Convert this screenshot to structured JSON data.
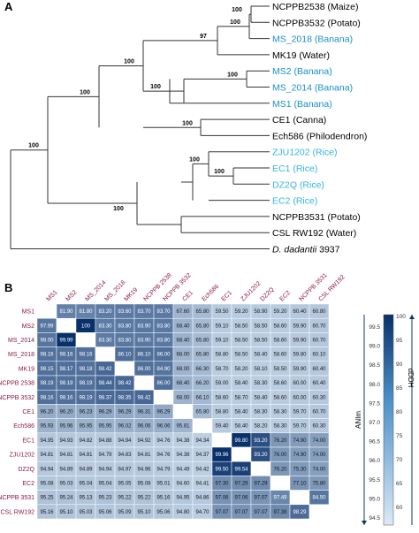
{
  "panel_a": {
    "label": "A",
    "leaves": [
      {
        "name": "NCPPB2538 (Maize)",
        "color": "#000000"
      },
      {
        "name": "NCPPB3532 (Potato)",
        "color": "#000000"
      },
      {
        "name": "MS_2018 (Banana)",
        "color": "#1a8fc9"
      },
      {
        "name": "MK19 (Water)",
        "color": "#000000"
      },
      {
        "name": "MS2  (Banana)",
        "color": "#1a8fc9"
      },
      {
        "name": "MS_2014 (Banana)",
        "color": "#1a8fc9"
      },
      {
        "name": "MS1 (Banana)",
        "color": "#1a8fc9"
      },
      {
        "name": "CE1 (Canna)",
        "color": "#000000"
      },
      {
        "name": "Ech586 (Philodendron)",
        "color": "#000000"
      },
      {
        "name": "ZJU1202 (Rice)",
        "color": "#33b3e0"
      },
      {
        "name": "EC1 (Rice)",
        "color": "#33b3e0"
      },
      {
        "name": "DZ2Q (Rice)",
        "color": "#33b3e0"
      },
      {
        "name": "EC2 (Rice)",
        "color": "#33b3e0"
      },
      {
        "name": "NCPPB3531 (Potato)",
        "color": "#000000"
      },
      {
        "name": "CSL RW192 (Water)",
        "color": "#000000"
      }
    ],
    "outgroup": {
      "italic": "D. dadantii",
      "rest": " 3937"
    },
    "bootstraps": [
      "100",
      "100",
      "97",
      "100",
      "100",
      "100",
      "100",
      "100",
      "100",
      "100",
      "100",
      "100"
    ]
  },
  "panel_b": {
    "label": "B",
    "strains": [
      "MS1",
      "MS2",
      "MS_2014",
      "MS_2018",
      "MK19",
      "NCPPB 2538",
      "NCPPB 3532",
      "CE1",
      "Ech586",
      "EC1",
      "ZJU1202",
      "DZ2Q",
      "EC2",
      "NCPPB 3531",
      "CSL RW192"
    ],
    "row_labels": [
      "MS1",
      "MS2",
      "MS_2014",
      "MS_2018",
      "MK19",
      "NCPPB 2538",
      "NCPPB 3532",
      "CE1",
      "Ech586",
      "EC1",
      "ZJU1202",
      "DZ2Q",
      "EC2",
      "NCPPB 3531",
      "CSL RW192"
    ],
    "matrix": [
      [
        "",
        "81.90",
        "81.80",
        "83.20",
        "83.60",
        "83.70",
        "83.70",
        "67.60",
        "65.80",
        "59.50",
        "59.20",
        "58.90",
        "59.20",
        "60.40",
        "60.80"
      ],
      [
        "97.99",
        "",
        "100",
        "83.30",
        "83.80",
        "83.90",
        "83.80",
        "68.40",
        "65.80",
        "59.10",
        "58.50",
        "58.50",
        "58.60",
        "59.90",
        "60.70"
      ],
      [
        "98.00",
        "99.99",
        "",
        "83.30",
        "83.80",
        "83.90",
        "83.80",
        "68.40",
        "65.80",
        "59.10",
        "58.50",
        "58.50",
        "58.60",
        "59.90",
        "60.70"
      ],
      [
        "98.16",
        "98.16",
        "98.16",
        "",
        "86.10",
        "86.10",
        "86.00",
        "68.00",
        "65.80",
        "58.80",
        "58.50",
        "58.40",
        "58.60",
        "59.80",
        "60.10"
      ],
      [
        "98.15",
        "98.17",
        "98.18",
        "98.42",
        "",
        "86.00",
        "84.90",
        "68.00",
        "66.30",
        "58.70",
        "58.20",
        "58.10",
        "58.50",
        "59.90",
        "60.40"
      ],
      [
        "98.19",
        "98.19",
        "98.19",
        "98.44",
        "98.42",
        "",
        "86.00",
        "68.40",
        "66.20",
        "59.00",
        "58.40",
        "58.30",
        "58.60",
        "60.00",
        "60.40"
      ],
      [
        "98.16",
        "98.16",
        "98.19",
        "98.37",
        "98.35",
        "98.42",
        "",
        "68.00",
        "66.10",
        "58.60",
        "58.70",
        "58.40",
        "58.60",
        "60.00",
        "60.30"
      ],
      [
        "96.20",
        "96.20",
        "96.23",
        "96.29",
        "96.29",
        "96.31",
        "96.29",
        "",
        "65.80",
        "58.80",
        "58.40",
        "58.30",
        "58.30",
        "59.70",
        "60.70"
      ],
      [
        "95.93",
        "95.96",
        "95.95",
        "95.95",
        "96.02",
        "96.06",
        "96.06",
        "95.81",
        "",
        "59.40",
        "58.40",
        "58.20",
        "58.30",
        "59.70",
        "60.30"
      ],
      [
        "94.95",
        "94.93",
        "94.82",
        "94.88",
        "94.94",
        "94.92",
        "94.76",
        "94.38",
        "94.34",
        "",
        "99.80",
        "93.20",
        "76.20",
        "74.90",
        "74.00"
      ],
      [
        "94.81",
        "94.81",
        "94.81",
        "94.79",
        "94.83",
        "94.81",
        "94.76",
        "94.38",
        "94.37",
        "99.96",
        "",
        "93.20",
        "76.00",
        "74.90",
        "74.00"
      ],
      [
        "94.94",
        "94.89",
        "94.89",
        "94.94",
        "94.97",
        "94.96",
        "94.79",
        "94.49",
        "94.42",
        "99.50",
        "99.54",
        "",
        "76.20",
        "75.30",
        "74.00"
      ],
      [
        "95.08",
        "95.03",
        "95.04",
        "95.04",
        "95.05",
        "95.08",
        "95.01",
        "94.60",
        "94.41",
        "97.30",
        "97.29",
        "97.29",
        "",
        "77.10",
        "75.80"
      ],
      [
        "95.25",
        "95.24",
        "95.13",
        "95.23",
        "95.22",
        "95.22",
        "95.16",
        "94.95",
        "94.86",
        "97.06",
        "97.06",
        "97.07",
        "97.49",
        "",
        "84.50"
      ],
      [
        "95.16",
        "95.10",
        "95.03",
        "95.06",
        "95.09",
        "95.10",
        "95.06",
        "94.80",
        "94.70",
        "97.07",
        "97.07",
        "97.07",
        "97.38",
        "98.29",
        ""
      ]
    ],
    "colorbar": {
      "left_title": "ANIm",
      "right_title": "dDDH",
      "ani_range": [
        94.5,
        99.96
      ],
      "dddh_range": [
        57,
        100
      ],
      "left_ticks": [
        "99.5",
        "99.0",
        "98.5",
        "98.0",
        "97.5",
        "97.0",
        "96.5",
        "96.0",
        "95.5",
        "95.0",
        "94.5"
      ],
      "right_ticks": [
        "100",
        "95",
        "90",
        "85",
        "80",
        "75",
        "70",
        "65",
        "60"
      ],
      "color_low": "#dbeaf7",
      "color_high": "#08306b"
    }
  }
}
